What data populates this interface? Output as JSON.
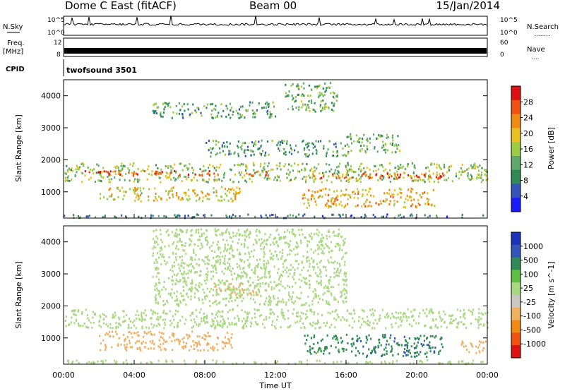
{
  "header": {
    "station": "Dome C East (fitACF)",
    "beam": "Beam 00",
    "date": "15/Jan/2014"
  },
  "summary_panels": {
    "nsky_label": "N.Sky",
    "nsearch_label": "N.Search",
    "nsearch_dots": "........",
    "freq_label": "Freq.",
    "freq_unit": "[MHz]",
    "nave_label": "Nave",
    "nave_dots": "....",
    "cpid_label": "CPID",
    "cpid_value": "twofsound 3501",
    "noise_ticks_left": [
      "10^5",
      "10^0"
    ],
    "noise_ticks_right": [
      "10^5",
      "10^0"
    ],
    "freq_ticks": [
      "12",
      "8"
    ],
    "nave_ticks": [
      "60",
      "0"
    ]
  },
  "colors": {
    "power_scale": [
      "#1a1aff",
      "#3355bb",
      "#2f8a55",
      "#5faa6a",
      "#9ccc44",
      "#e8c020",
      "#f08a10",
      "#f05010",
      "#e01010"
    ],
    "velocity_scale": [
      "#e01010",
      "#f05010",
      "#f08a10",
      "#f0b060",
      "#c8c8c0",
      "#a8d880",
      "#5fbf3f",
      "#2f8a55",
      "#3355bb",
      "#1a33bb"
    ]
  },
  "chart_data": [
    {
      "type": "heatmap",
      "name": "power",
      "xlabel": "",
      "ylabel": "Slant Range [km]",
      "xlim": [
        0,
        24
      ],
      "ylim": [
        180,
        4500
      ],
      "y_ticks": [
        "4000",
        "3000",
        "2000",
        "1000"
      ],
      "colorbar": {
        "label": "Power [dB]",
        "ticks": [
          "28",
          "24",
          "20",
          "16",
          "12",
          "8",
          "4"
        ],
        "range": [
          0,
          30
        ]
      },
      "bands": [
        {
          "t0": 0.0,
          "t1": 24.0,
          "r0": 1300,
          "r1": 1900,
          "value": 14
        },
        {
          "t0": 1.0,
          "t1": 12.5,
          "r0": 1500,
          "r1": 1650,
          "value": 24
        },
        {
          "t0": 14.0,
          "t1": 21.5,
          "r0": 1400,
          "r1": 1600,
          "value": 24
        },
        {
          "t0": 2.0,
          "t1": 10.0,
          "r0": 700,
          "r1": 1150,
          "value": 18
        },
        {
          "t0": 13.5,
          "t1": 21.0,
          "r0": 500,
          "r1": 1100,
          "value": 20
        },
        {
          "t0": 16.0,
          "t1": 19.0,
          "r0": 2200,
          "r1": 2800,
          "value": 12
        },
        {
          "t0": 8.0,
          "t1": 16.0,
          "r0": 2100,
          "r1": 2600,
          "value": 10
        },
        {
          "t0": 5.0,
          "t1": 12.0,
          "r0": 3300,
          "r1": 3800,
          "value": 11
        },
        {
          "t0": 12.5,
          "t1": 15.5,
          "r0": 3500,
          "r1": 4400,
          "value": 12
        },
        {
          "t0": 0.0,
          "t1": 24.0,
          "r0": 180,
          "r1": 300,
          "value": 8
        }
      ]
    },
    {
      "type": "heatmap",
      "name": "velocity",
      "xlabel": "Time UT",
      "ylabel": "Slant Range [km]",
      "xlim": [
        0,
        24
      ],
      "ylim": [
        180,
        4500
      ],
      "x_ticks": [
        "00:00",
        "04:00",
        "08:00",
        "12:00",
        "16:00",
        "20:00",
        "00:00"
      ],
      "y_ticks": [
        "4000",
        "3000",
        "2000",
        "1000"
      ],
      "colorbar": {
        "label": "Velocity [m s^-1]",
        "ticks": [
          "1000",
          "500",
          "100",
          "25",
          "-25",
          "-100",
          "-500",
          "-1000"
        ]
      },
      "bands": [
        {
          "t0": 0.0,
          "t1": 24.0,
          "r0": 1300,
          "r1": 1900,
          "value": 0
        },
        {
          "t0": 2.0,
          "t1": 9.5,
          "r0": 600,
          "r1": 1200,
          "value": -300
        },
        {
          "t0": 8.5,
          "t1": 11.0,
          "r0": 2300,
          "r1": 2700,
          "value": -150
        },
        {
          "t0": 13.5,
          "t1": 16.5,
          "r0": 500,
          "r1": 1100,
          "value": 150
        },
        {
          "t0": 16.5,
          "t1": 21.5,
          "r0": 400,
          "r1": 1100,
          "value": 400
        },
        {
          "t0": 22.5,
          "t1": 24.0,
          "r0": 500,
          "r1": 900,
          "value": -300
        },
        {
          "t0": 5.0,
          "t1": 16.0,
          "r0": 2000,
          "r1": 4400,
          "value": 0
        },
        {
          "t0": 0.0,
          "t1": 24.0,
          "r0": 180,
          "r1": 300,
          "value": 0
        }
      ]
    }
  ]
}
